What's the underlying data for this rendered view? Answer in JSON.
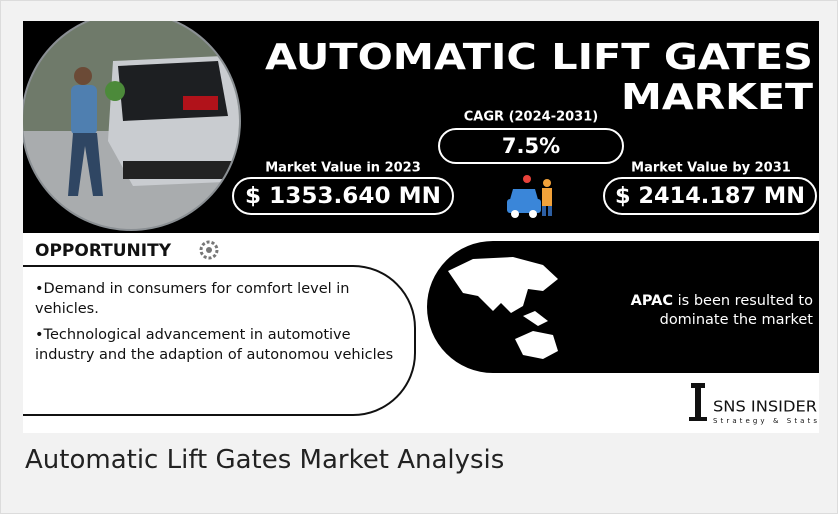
{
  "infographic": {
    "title_line1": "AUTOMATIC LIFT GATES",
    "title_line2": "MARKET",
    "cagr_label": "CAGR (2024-2031)",
    "cagr_value": "7.5%",
    "value_2023_label": "Market Value in 2023",
    "value_2023": "$ 1353.640 MN",
    "value_2031_label": "Market Value by 2031",
    "value_2031": "$ 2414.187 MN",
    "opportunity_heading": "OPPORTUNITY",
    "opportunities": [
      "•Demand in consumers for comfort level in vehicles.",
      "•Technological advancement in automotive industry and the adaption of autonomou vehicles"
    ],
    "region_highlight": "APAC",
    "region_text": "is been resulted to dominate the market",
    "brand": "SNS INSIDER",
    "brand_tagline": "Strategy & Stats"
  },
  "caption": "Automatic Lift Gates Market Analysis"
}
